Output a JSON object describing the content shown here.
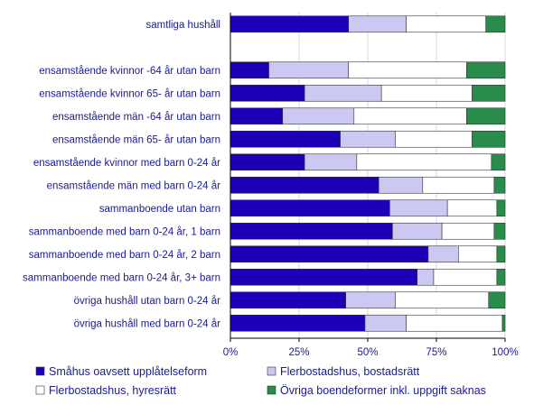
{
  "chart_data": {
    "type": "bar",
    "orientation": "horizontal",
    "stacked": true,
    "categories": [
      "samtliga hushåll",
      "",
      "ensamstående kvinnor -64 år utan barn",
      "ensamstående kvinnor 65- år utan barn",
      "ensamstående män -64 år utan barn",
      "ensamstående män 65- år utan barn",
      "ensamstående kvinnor med barn 0-24 år",
      "ensamstående män med barn 0-24 år",
      "sammanboende utan barn",
      "sammanboende med barn 0-24 år, 1 barn",
      "sammanboende med barn 0-24 år, 2 barn",
      "sammanboende med barn 0-24 år, 3+  barn",
      "övriga hushåll utan barn 0-24 år",
      "övriga hushåll med barn 0-24 år"
    ],
    "series": [
      {
        "name": "Småhus oavsett upplåtelseform",
        "color": "#1b00b7",
        "values": [
          43,
          null,
          14,
          27,
          19,
          40,
          27,
          54,
          58,
          59,
          72,
          68,
          42,
          49
        ]
      },
      {
        "name": "Flerbostadshus, bostadsrätt",
        "color": "#cbc8f2",
        "values": [
          21,
          null,
          29,
          28,
          26,
          20,
          19,
          16,
          21,
          18,
          11,
          6,
          18,
          15
        ]
      },
      {
        "name": "Flerbostadshus, hyresrätt",
        "color": "#ffffff",
        "values": [
          29,
          null,
          43,
          33,
          41,
          28,
          49,
          26,
          18,
          19,
          14,
          23,
          34,
          35
        ]
      },
      {
        "name": "Övriga boendeformer inkl. uppgift saknas",
        "color": "#2a8c4a",
        "values": [
          7,
          null,
          14,
          12,
          14,
          12,
          5,
          4,
          3,
          4,
          3,
          3,
          6,
          1
        ]
      }
    ],
    "x_ticks": [
      "0%",
      "25%",
      "50%",
      "75%",
      "100%"
    ],
    "xlim": [
      0,
      100
    ],
    "grid": true,
    "legend_position": "bottom"
  }
}
